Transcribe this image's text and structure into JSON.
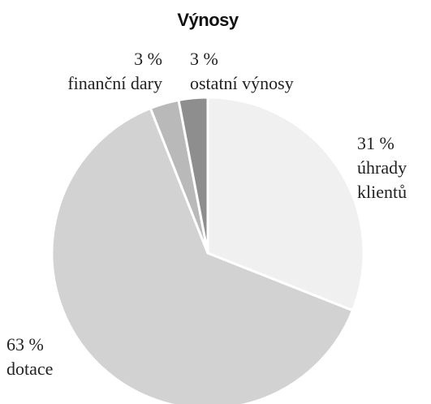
{
  "chart_data": {
    "type": "pie",
    "title": "Výnosy",
    "categories": [
      "úhrady klientů",
      "dotace",
      "finanční dary",
      "ostatní výnosy"
    ],
    "values": [
      31,
      63,
      3,
      3
    ],
    "value_labels": [
      "31 %",
      "63 %",
      "3 %",
      "3 %"
    ],
    "colors": [
      "#f0f0f0",
      "#d2d2d2",
      "#b9b9b9",
      "#8e8e8e"
    ]
  }
}
